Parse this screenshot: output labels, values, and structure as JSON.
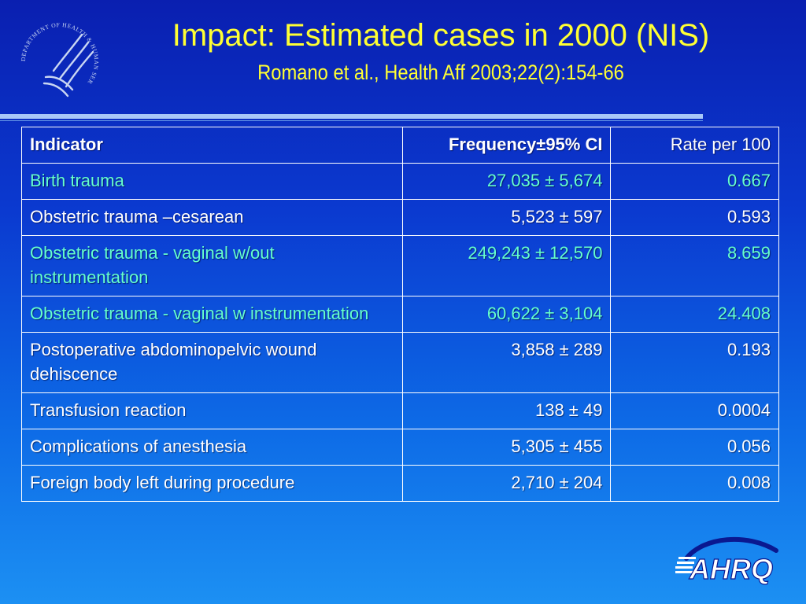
{
  "slide": {
    "title": "Impact: Estimated cases in 2000 (NIS)",
    "subtitle": "Romano et al., Health Aff 2003;22(2):154-66",
    "seal_text": "DEPARTMENT OF HEALTH & HUMAN SERVICES · USA",
    "logo_text": "AHRQ"
  },
  "table": {
    "headers": {
      "indicator": "Indicator",
      "frequency": "Frequency±95% CI",
      "rate": "Rate per 100"
    },
    "rows": [
      {
        "indicator": "Birth trauma",
        "frequency": "27,035 ± 5,674",
        "rate": "0.667",
        "highlight": true
      },
      {
        "indicator": "Obstetric trauma –cesarean",
        "frequency": "5,523 ± 597",
        "rate": "0.593",
        "highlight": false
      },
      {
        "indicator": "Obstetric trauma - vaginal w/out instrumentation",
        "frequency": "249,243 ± 12,570",
        "rate": "8.659",
        "highlight": true
      },
      {
        "indicator": "Obstetric trauma - vaginal w instrumentation",
        "frequency": "60,622 ± 3,104",
        "rate": "24.408",
        "highlight": true
      },
      {
        "indicator": "Postoperative abdominopelvic wound dehiscence",
        "frequency": "3,858 ± 289",
        "rate": "0.193",
        "highlight": false
      },
      {
        "indicator": "Transfusion reaction",
        "frequency": "138 ± 49",
        "rate": "0.0004",
        "highlight": false
      },
      {
        "indicator": "Complications of anesthesia",
        "frequency": "5,305 ± 455",
        "rate": "0.056",
        "highlight": false
      },
      {
        "indicator": "Foreign body left during procedure",
        "frequency": "2,710 ± 204",
        "rate": "0.008",
        "highlight": false
      }
    ]
  },
  "colors": {
    "title": "#ffff33",
    "highlight_text": "#66ffcc",
    "body_text": "#ffffff",
    "background_top": "#0a1fb0",
    "background_bottom": "#1c90f3"
  }
}
